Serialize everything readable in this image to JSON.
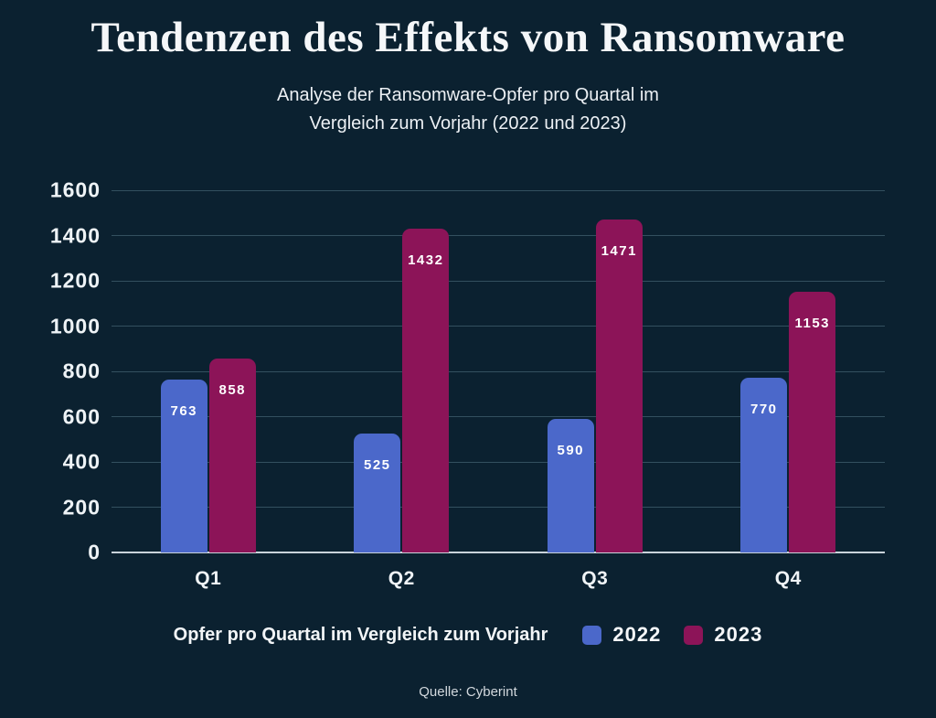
{
  "header": {
    "title": "Tendenzen des Effekts von Ransomware",
    "subtitle_line1": "Analyse der Ransomware-Opfer pro Quartal im",
    "subtitle_line2": "Vergleich zum Vorjahr (2022 und 2023)"
  },
  "chart_data": {
    "type": "bar",
    "categories": [
      "Q1",
      "Q2",
      "Q3",
      "Q4"
    ],
    "series": [
      {
        "name": "2022",
        "color": "#4b68ca",
        "values": [
          763,
          525,
          590,
          770
        ]
      },
      {
        "name": "2023",
        "color": "#8c1458",
        "values": [
          858,
          1432,
          1471,
          1153
        ]
      }
    ],
    "title": "Tendenzen des Effekts von Ransomware",
    "subtitle": "Analyse der Ransomware-Opfer pro Quartal im Vergleich zum Vorjahr (2022 und 2023)",
    "xlabel": "",
    "ylabel": "",
    "ylim": [
      0,
      1600
    ],
    "yticks": [
      0,
      200,
      400,
      600,
      800,
      1000,
      1200,
      1400,
      1600
    ],
    "grid": "horizontal",
    "value_labels": "inside-top",
    "legend_position": "bottom"
  },
  "legend": {
    "label": "Opfer pro Quartal im Vergleich zum Vorjahr"
  },
  "footer": {
    "source": "Quelle: Cyberint"
  },
  "colors": {
    "background": "#0b2130",
    "text": "#f5f7f9",
    "grid": "#33505f",
    "axis": "#c9d3da",
    "bar_2022": "#4b68ca",
    "bar_2023": "#8c1458"
  }
}
